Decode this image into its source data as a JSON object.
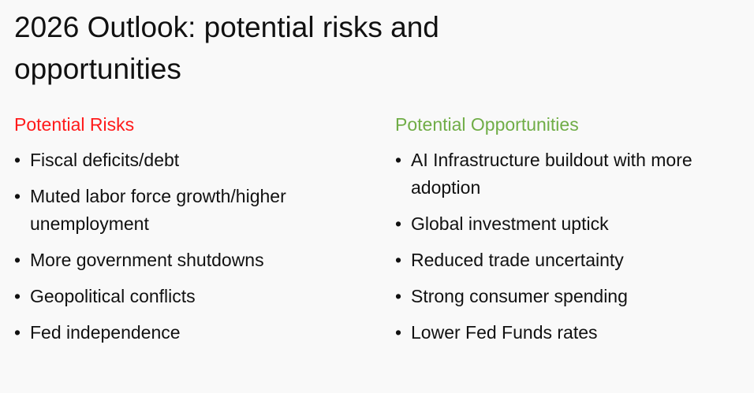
{
  "title": "2026 Outlook: potential risks and opportunities",
  "colors": {
    "risks": "#ff1a1a",
    "opportunities": "#70ad47"
  },
  "risks": {
    "heading": "Potential Risks",
    "items": [
      "Fiscal deficits/debt",
      "Muted labor force growth/higher unemployment",
      "More government shutdowns",
      "Geopolitical conflicts",
      "Fed independence"
    ]
  },
  "opportunities": {
    "heading": "Potential Opportunities",
    "items": [
      "AI Infrastructure buildout with more adoption",
      "Global investment uptick",
      "Reduced trade uncertainty",
      "Strong consumer spending",
      "Lower Fed Funds rates"
    ]
  }
}
